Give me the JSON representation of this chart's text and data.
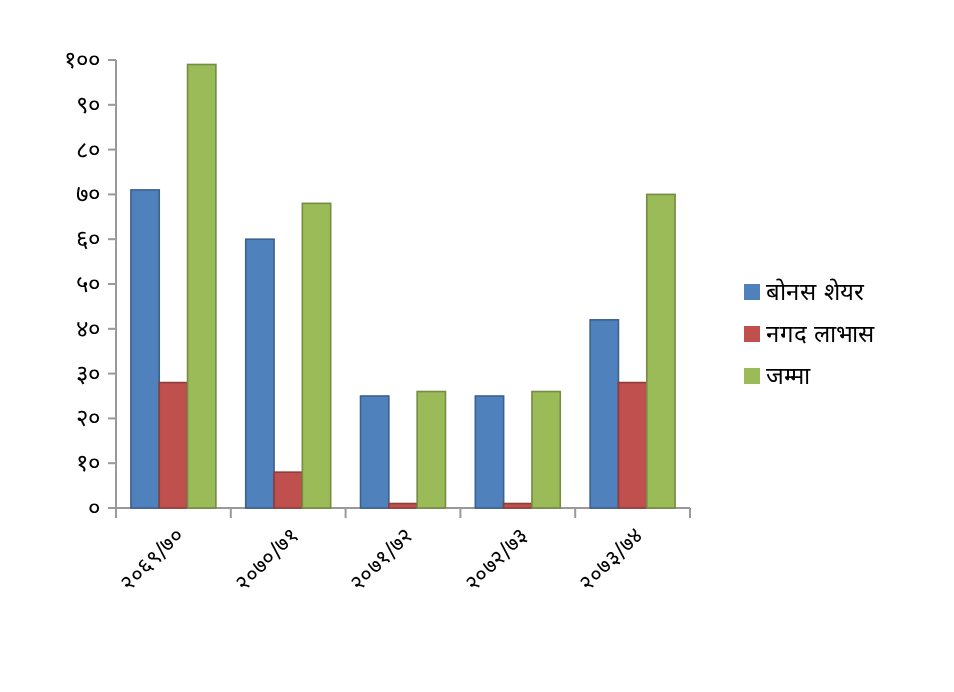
{
  "chart_data": {
    "type": "bar",
    "categories": [
      "२०६९/७०",
      "२०७०/७१",
      "२०७१/७२",
      "२०७२/७३",
      "२०७३/७४"
    ],
    "series": [
      {
        "name": "बोनस शेयर",
        "color": "#4f81bd",
        "values": [
          71,
          60,
          25,
          25,
          42
        ]
      },
      {
        "name": "नगद लाभास",
        "color": "#c0504d",
        "values": [
          28,
          8,
          1,
          1,
          28
        ]
      },
      {
        "name": "जम्मा",
        "color": "#9bbb59",
        "values": [
          99,
          68,
          26,
          26,
          70
        ]
      }
    ],
    "ylim": [
      0,
      100
    ],
    "yticks": [
      {
        "value": 0,
        "label": "०"
      },
      {
        "value": 10,
        "label": "१०"
      },
      {
        "value": 20,
        "label": "२०"
      },
      {
        "value": 30,
        "label": "३०"
      },
      {
        "value": 40,
        "label": "४०"
      },
      {
        "value": 50,
        "label": "५०"
      },
      {
        "value": 60,
        "label": "६०"
      },
      {
        "value": 70,
        "label": "७०"
      },
      {
        "value": 80,
        "label": "८०"
      },
      {
        "value": 90,
        "label": "९०"
      },
      {
        "value": 100,
        "label": "१००"
      }
    ],
    "grid": false,
    "legend": "right"
  }
}
